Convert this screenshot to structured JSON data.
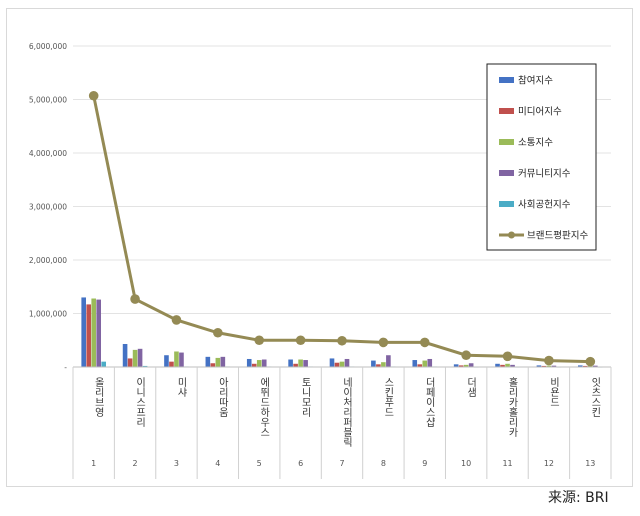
{
  "chart_data": {
    "type": "bar",
    "combo_line_series": "브랜드평판지수",
    "ylim": [
      0,
      6000000
    ],
    "yticks": [
      "6,000,000",
      "5,000,000",
      "4,000,000",
      "3,000,000",
      "2,000,000",
      "1,000,000",
      "-"
    ],
    "ytick_values": [
      6000000,
      5000000,
      4000000,
      3000000,
      2000000,
      1000000,
      0
    ],
    "grid": true,
    "legend_position": "top-right",
    "categories": [
      "올리브영",
      "이니스프리",
      "미샤",
      "아리따움",
      "에뛰드하우스",
      "토니모리",
      "네이처리퍼블릭",
      "스킨푸드",
      "더페이스샵",
      "더샘",
      "홀리카홀리카",
      "비욘드",
      "잇츠스킨"
    ],
    "category_numbers": [
      "1",
      "2",
      "3",
      "4",
      "5",
      "6",
      "7",
      "8",
      "9",
      "10",
      "11",
      "12",
      "13"
    ],
    "series": [
      {
        "name": "참여지수",
        "color": "#4472c4",
        "values": [
          1300000,
          430000,
          220000,
          190000,
          150000,
          140000,
          160000,
          120000,
          130000,
          50000,
          60000,
          30000,
          30000
        ]
      },
      {
        "name": "미디어지수",
        "color": "#c0504d",
        "values": [
          1170000,
          160000,
          100000,
          70000,
          60000,
          60000,
          80000,
          50000,
          50000,
          30000,
          40000,
          20000,
          20000
        ]
      },
      {
        "name": "소통지수",
        "color": "#9bbb59",
        "values": [
          1280000,
          320000,
          290000,
          170000,
          130000,
          140000,
          100000,
          90000,
          120000,
          40000,
          60000,
          25000,
          20000
        ]
      },
      {
        "name": "커뮤니티지수",
        "color": "#8064a2",
        "values": [
          1260000,
          340000,
          270000,
          190000,
          140000,
          130000,
          150000,
          220000,
          150000,
          70000,
          40000,
          25000,
          25000
        ]
      },
      {
        "name": "사회공헌지수",
        "color": "#4bacc6",
        "values": [
          100000,
          20000,
          10000,
          10000,
          10000,
          10000,
          10000,
          10000,
          10000,
          5000,
          5000,
          5000,
          5000
        ]
      },
      {
        "name": "브랜드평판지수",
        "color": "#948a54",
        "type": "line",
        "values": [
          5070000,
          1270000,
          880000,
          640000,
          500000,
          500000,
          490000,
          460000,
          460000,
          220000,
          200000,
          120000,
          100000
        ]
      }
    ]
  },
  "source_text": "来源: BRI"
}
